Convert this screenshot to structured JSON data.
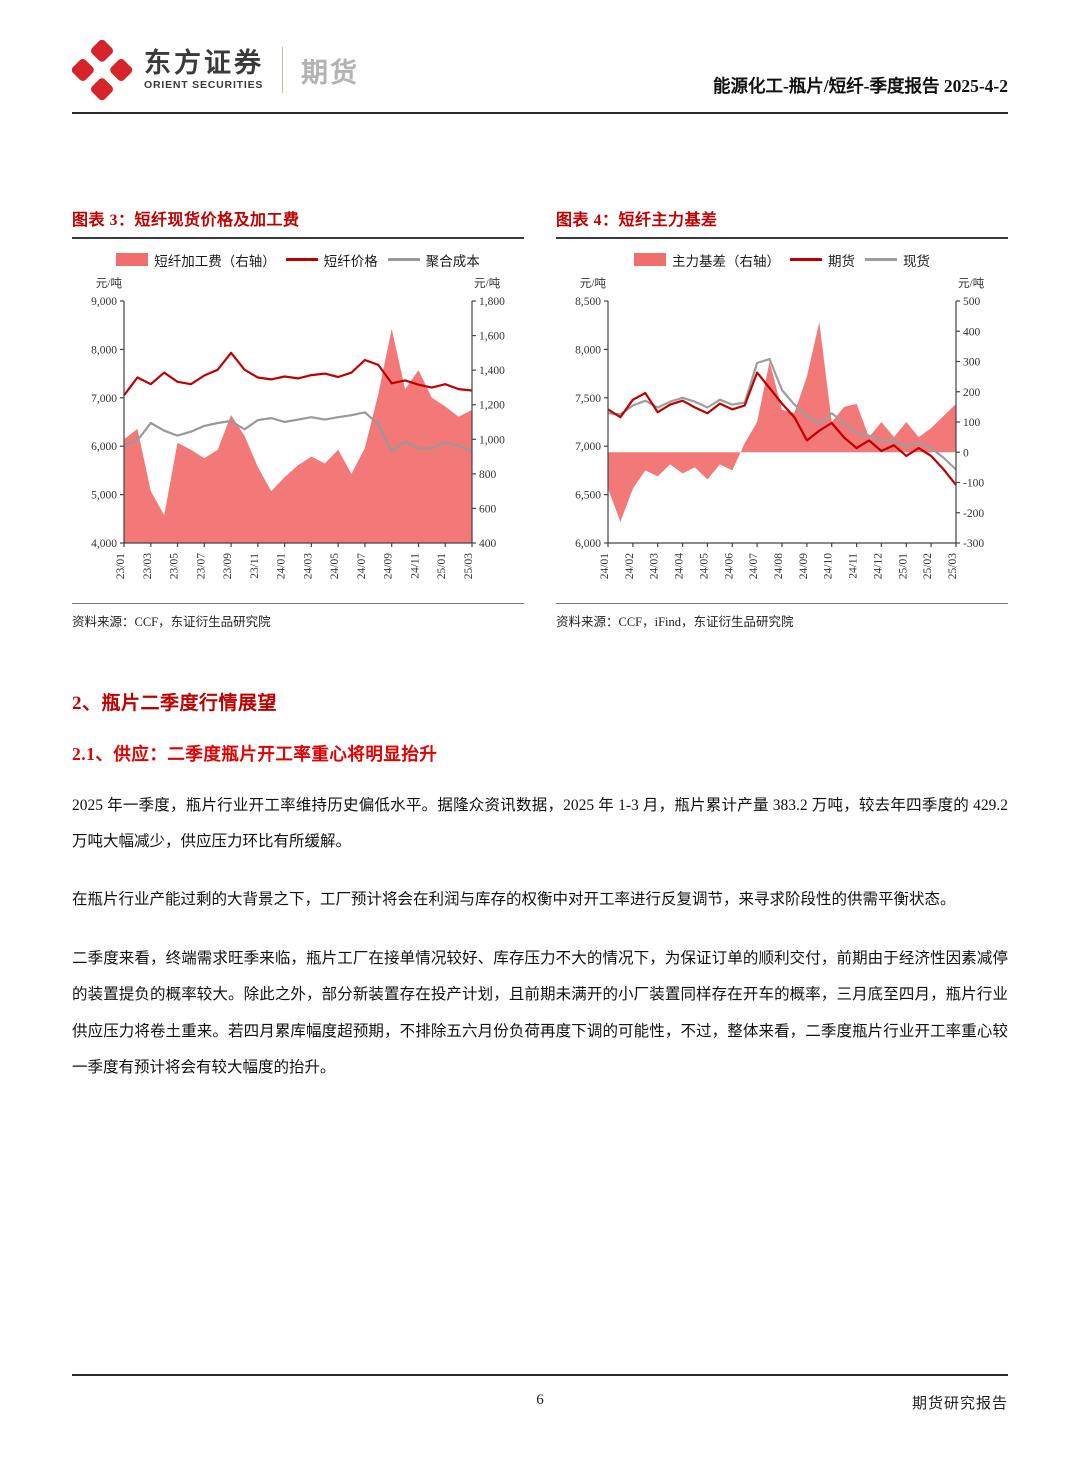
{
  "header": {
    "brand_cn": "东方证券",
    "brand_en": "ORIENT SECURITIES",
    "department": "期货",
    "report_title": "能源化工-瓶片/短纤-季度报告 2025-4-2",
    "logo_color": "#d7232a"
  },
  "chart_data": [
    {
      "type": "combo-area-line",
      "title": "图表 3：短纤现货价格及加工费",
      "unit_left": "元/吨",
      "unit_right": "元/吨",
      "source": "资料来源：CCF，东证衍生品研究院",
      "left_axis": {
        "min": 4000,
        "max": 9000,
        "ticks": [
          "9,000",
          "8,000",
          "7,000",
          "6,000",
          "5,000",
          "4,000"
        ]
      },
      "right_axis": {
        "min": 400,
        "max": 1800,
        "ticks": [
          "1,800",
          "1,600",
          "1,400",
          "1,200",
          "1,000",
          "800",
          "600",
          "400"
        ]
      },
      "x_labels": [
        "23/01",
        "23/03",
        "23/05",
        "23/07",
        "23/09",
        "23/11",
        "24/01",
        "24/03",
        "24/05",
        "24/07",
        "24/09",
        "24/11",
        "25/01",
        "25/03"
      ],
      "label_step": 2,
      "legend_position": "top",
      "grid": false,
      "series": [
        {
          "name": "短纤加工费（右轴）",
          "kind": "area",
          "axis": "right",
          "color": "#f26d6d",
          "baseline": 400,
          "values": [
            1000,
            1060,
            700,
            560,
            980,
            940,
            890,
            940,
            1140,
            1020,
            840,
            700,
            780,
            850,
            900,
            860,
            940,
            800,
            950,
            1260,
            1640,
            1290,
            1400,
            1240,
            1190,
            1130,
            1170
          ]
        },
        {
          "name": "短纤价格",
          "kind": "line",
          "axis": "left",
          "color": "#c00000",
          "values": [
            7050,
            7420,
            7280,
            7520,
            7330,
            7280,
            7460,
            7580,
            7930,
            7580,
            7420,
            7380,
            7440,
            7400,
            7470,
            7500,
            7430,
            7520,
            7780,
            7680,
            7300,
            7360,
            7270,
            7210,
            7280,
            7180,
            7150
          ]
        },
        {
          "name": "聚合成本",
          "kind": "line",
          "axis": "left",
          "color": "#999999",
          "values": [
            6020,
            6120,
            6480,
            6320,
            6220,
            6300,
            6420,
            6480,
            6520,
            6350,
            6540,
            6580,
            6500,
            6550,
            6600,
            6550,
            6600,
            6640,
            6700,
            6450,
            5900,
            6100,
            5950,
            5960,
            6080,
            6010,
            5900
          ]
        }
      ]
    },
    {
      "type": "combo-area-line",
      "title": "图表 4：短纤主力基差",
      "unit_left": "元/吨",
      "unit_right": "元/吨",
      "source": "资料来源：CCF，iFind，东证衍生品研究院",
      "left_axis": {
        "min": 6000,
        "max": 8500,
        "ticks": [
          "8,500",
          "8,000",
          "7,500",
          "7,000",
          "6,500",
          "6,000"
        ]
      },
      "right_axis": {
        "min": -300,
        "max": 500,
        "ticks": [
          "500",
          "400",
          "300",
          "200",
          "100",
          "0",
          "-100",
          "-200",
          "-300"
        ]
      },
      "x_labels": [
        "24/01",
        "24/02",
        "24/03",
        "24/04",
        "24/05",
        "24/06",
        "24/07",
        "24/08",
        "24/09",
        "24/10",
        "24/11",
        "24/12",
        "25/01",
        "25/02",
        "25/03"
      ],
      "label_step": 2,
      "legend_position": "top",
      "grid": false,
      "series": [
        {
          "name": "主力基差（右轴）",
          "kind": "area",
          "axis": "right",
          "color": "#f26d6d",
          "baseline": 0,
          "values": [
            -120,
            -230,
            -120,
            -60,
            -80,
            -40,
            -70,
            -50,
            -90,
            -40,
            -60,
            30,
            100,
            300,
            140,
            130,
            250,
            430,
            100,
            150,
            160,
            50,
            100,
            50,
            100,
            50,
            80,
            120,
            160
          ]
        },
        {
          "name": "期货",
          "kind": "line",
          "axis": "left",
          "color": "#c00000",
          "values": [
            7380,
            7300,
            7480,
            7550,
            7350,
            7430,
            7470,
            7400,
            7340,
            7440,
            7380,
            7420,
            7760,
            7600,
            7440,
            7300,
            7060,
            7160,
            7240,
            7090,
            6980,
            7060,
            6950,
            7010,
            6900,
            6980,
            6900,
            6760,
            6600
          ]
        },
        {
          "name": "现货",
          "kind": "line",
          "axis": "left",
          "color": "#9e9e9e",
          "values": [
            7340,
            7330,
            7420,
            7470,
            7400,
            7460,
            7500,
            7460,
            7400,
            7480,
            7430,
            7450,
            7860,
            7900,
            7580,
            7430,
            7310,
            7230,
            7340,
            7240,
            7140,
            7110,
            7050,
            7060,
            7000,
            7030,
            6980,
            6880,
            6760
          ]
        }
      ]
    }
  ],
  "sections": {
    "heading2": "2、瓶片二季度行情展望",
    "heading21": "2.1、供应：二季度瓶片开工率重心将明显抬升",
    "paragraphs": [
      "2025 年一季度，瓶片行业开工率维持历史偏低水平。据隆众资讯数据，2025 年 1-3 月，瓶片累计产量 383.2 万吨，较去年四季度的 429.2 万吨大幅减少，供应压力环比有所缓解。",
      "在瓶片行业产能过剩的大背景之下，工厂预计将会在利润与库存的权衡中对开工率进行反复调节，来寻求阶段性的供需平衡状态。",
      "二季度来看，终端需求旺季来临，瓶片工厂在接单情况较好、库存压力不大的情况下，为保证订单的顺利交付，前期由于经济性因素减停的装置提负的概率较大。除此之外，部分新装置存在投产计划，且前期未满开的小厂装置同样存在开车的概率，三月底至四月，瓶片行业供应压力将卷土重来。若四月累库幅度超预期，不排除五六月份负荷再度下调的可能性，不过，整体来看，二季度瓶片行业开工率重心较一季度有预计将会有较大幅度的抬升。"
    ]
  },
  "footer": {
    "page_number": "6",
    "label": "期货研究报告"
  },
  "colors": {
    "accent_dark_red": "#c00000",
    "accent_red": "#e30000",
    "area_red": "#f26d6d",
    "line_gray": "#999999",
    "axis": "#444444"
  }
}
